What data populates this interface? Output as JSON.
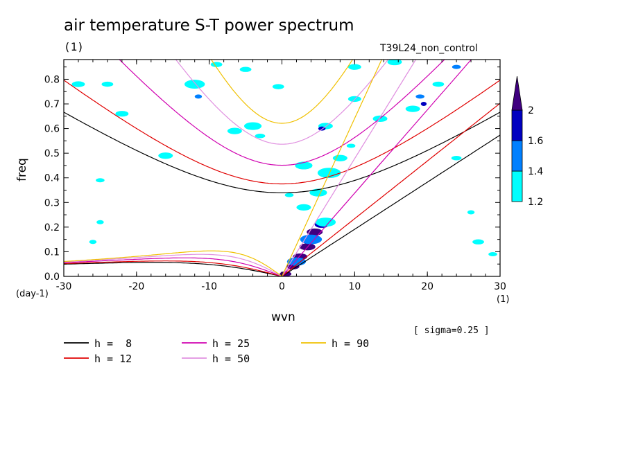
{
  "chart_data": {
    "type": "line",
    "title": "air temperature S-T power spectrum",
    "units_label": "(1)",
    "experiment": "T39L24_non_control",
    "xlabel": "wvn",
    "ylabel": "freq",
    "x_unit": "(1)",
    "y_unit": "(day-1)",
    "xlim": [
      -30,
      30
    ],
    "ylim": [
      0,
      0.88
    ],
    "x_ticks": [
      "-30",
      "-20",
      "-10",
      "0",
      "10",
      "20",
      "30"
    ],
    "y_ticks": [
      "0.0",
      "0.1",
      "0.2",
      "0.3",
      "0.4",
      "0.5",
      "0.6",
      "0.7",
      "0.8"
    ],
    "annotation": "[ sigma=0.25 ]",
    "series": [
      {
        "name": "h =  8",
        "h": 8,
        "color": "#000000"
      },
      {
        "name": "h = 12",
        "h": 12,
        "color": "#e00000"
      },
      {
        "name": "h = 25",
        "h": 25,
        "color": "#d000b0"
      },
      {
        "name": "h = 50",
        "h": 50,
        "color": "#e090e0"
      },
      {
        "name": "h = 90",
        "h": 90,
        "color": "#f0c000"
      }
    ],
    "colorbar": {
      "levels": [
        "1.2",
        "1.4",
        "1.6",
        "2"
      ],
      "colors": [
        "#00ffff",
        "#0080ff",
        "#0000c0",
        "#400080"
      ]
    },
    "contour_blobs": [
      {
        "x": 0.5,
        "y": 0.01,
        "r": 0.8,
        "level": 3
      },
      {
        "x": 1.5,
        "y": 0.04,
        "r": 0.9,
        "level": 3
      },
      {
        "x": 2.5,
        "y": 0.08,
        "r": 1.0,
        "level": 3
      },
      {
        "x": 3.5,
        "y": 0.12,
        "r": 1.1,
        "level": 3
      },
      {
        "x": 4.5,
        "y": 0.18,
        "r": 1.1,
        "level": 3
      },
      {
        "x": 5.5,
        "y": 0.21,
        "r": 1.0,
        "level": 2
      },
      {
        "x": 2.0,
        "y": 0.06,
        "r": 1.3,
        "level": 1
      },
      {
        "x": 4.0,
        "y": 0.15,
        "r": 1.5,
        "level": 1
      },
      {
        "x": 6.0,
        "y": 0.22,
        "r": 1.4,
        "level": 0
      },
      {
        "x": 3.0,
        "y": 0.28,
        "r": 1.0,
        "level": 0
      },
      {
        "x": 5.0,
        "y": 0.34,
        "r": 1.2,
        "level": 0
      },
      {
        "x": 6.5,
        "y": 0.42,
        "r": 1.6,
        "level": 0
      },
      {
        "x": 3.0,
        "y": 0.45,
        "r": 1.2,
        "level": 0
      },
      {
        "x": 8.0,
        "y": 0.48,
        "r": 1.0,
        "level": 0
      },
      {
        "x": 6.0,
        "y": 0.61,
        "r": 1.0,
        "level": 0
      },
      {
        "x": 5.5,
        "y": 0.6,
        "r": 0.5,
        "level": 2
      },
      {
        "x": 13.5,
        "y": 0.64,
        "r": 1.0,
        "level": 0
      },
      {
        "x": 10.0,
        "y": 0.72,
        "r": 0.9,
        "level": 0
      },
      {
        "x": 18.0,
        "y": 0.68,
        "r": 1.0,
        "level": 0
      },
      {
        "x": 19.0,
        "y": 0.73,
        "r": 0.6,
        "level": 1
      },
      {
        "x": 19.5,
        "y": 0.7,
        "r": 0.4,
        "level": 2
      },
      {
        "x": 21.5,
        "y": 0.78,
        "r": 0.8,
        "level": 0
      },
      {
        "x": 24.0,
        "y": 0.85,
        "r": 0.6,
        "level": 1
      },
      {
        "x": 15.5,
        "y": 0.87,
        "r": 1.0,
        "level": 0
      },
      {
        "x": -12.0,
        "y": 0.78,
        "r": 1.4,
        "level": 0
      },
      {
        "x": -11.5,
        "y": 0.73,
        "r": 0.5,
        "level": 1
      },
      {
        "x": -16.0,
        "y": 0.49,
        "r": 1.0,
        "level": 0
      },
      {
        "x": -4.0,
        "y": 0.61,
        "r": 1.2,
        "level": 0
      },
      {
        "x": -6.5,
        "y": 0.59,
        "r": 1.0,
        "level": 0
      },
      {
        "x": -28.0,
        "y": 0.78,
        "r": 0.9,
        "level": 0
      },
      {
        "x": -24.0,
        "y": 0.78,
        "r": 0.8,
        "level": 0
      },
      {
        "x": -22.0,
        "y": 0.66,
        "r": 0.9,
        "level": 0
      },
      {
        "x": -9.0,
        "y": 0.86,
        "r": 0.8,
        "level": 0
      },
      {
        "x": -5.0,
        "y": 0.84,
        "r": 0.8,
        "level": 0
      },
      {
        "x": -0.5,
        "y": 0.77,
        "r": 0.8,
        "level": 0
      },
      {
        "x": -3.0,
        "y": 0.57,
        "r": 0.7,
        "level": 0
      },
      {
        "x": -25.0,
        "y": 0.39,
        "r": 0.6,
        "level": 0
      },
      {
        "x": -26.0,
        "y": 0.14,
        "r": 0.5,
        "level": 0
      },
      {
        "x": -25.0,
        "y": 0.22,
        "r": 0.5,
        "level": 0
      },
      {
        "x": 24.0,
        "y": 0.48,
        "r": 0.7,
        "level": 0
      },
      {
        "x": 27.0,
        "y": 0.14,
        "r": 0.8,
        "level": 0
      },
      {
        "x": 29.0,
        "y": 0.09,
        "r": 0.6,
        "level": 0
      },
      {
        "x": 26.0,
        "y": 0.26,
        "r": 0.5,
        "level": 0
      },
      {
        "x": 10.0,
        "y": 0.85,
        "r": 0.9,
        "level": 0
      },
      {
        "x": 1.0,
        "y": 0.33,
        "r": 0.6,
        "level": 0
      },
      {
        "x": 9.5,
        "y": 0.53,
        "r": 0.6,
        "level": 0
      }
    ]
  }
}
